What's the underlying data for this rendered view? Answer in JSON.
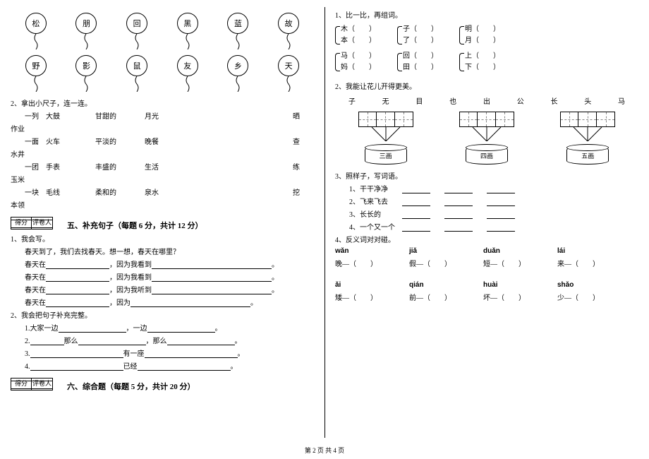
{
  "balloons_row1": [
    "松",
    "朋",
    "回",
    "黑",
    "蓝",
    "故"
  ],
  "balloons_row2": [
    "野",
    "影",
    "鼠",
    "友",
    "乡",
    "天"
  ],
  "q2_label": "2、拿出小尺子，连一连。",
  "pairs": [
    {
      "a": "一列",
      "b": "大鼓",
      "c": "甘甜的",
      "d": "月光",
      "e": "晒",
      "f": "作业"
    },
    {
      "a": "一面",
      "b": "火车",
      "c": "平淡的",
      "d": "晚餐",
      "e": "查",
      "f": "水井"
    },
    {
      "a": "一团",
      "b": "手表",
      "c": "丰盛的",
      "d": "生活",
      "e": "练",
      "f": "玉米"
    },
    {
      "a": "一块",
      "b": "毛线",
      "c": "柔和的",
      "d": "泉水",
      "e": "挖",
      "f": "本领"
    }
  ],
  "score_labels": {
    "score": "得分",
    "reviewer": "评卷人"
  },
  "section5": "五、补充句子（每题 6 分，共计 12 分）",
  "q5_1": "1、我会写。",
  "q5_1_prompt": "春天到了，我们去找春天。想一想，春天在哪里？",
  "q5_1_lines": [
    {
      "a": "春天在",
      "mid": "，因为我看到"
    },
    {
      "a": "春天在",
      "mid": "，因为我看到"
    },
    {
      "a": "春天在",
      "mid": "，因为我听到"
    },
    {
      "a": "春天在",
      "mid": "，因为"
    }
  ],
  "q5_2": "2、我会把句子补充完整。",
  "q5_2_lines": [
    "1.大家一边________________，一边________________。",
    "2.________那么________________，那么________________。",
    "3.______________________有一座______________________。",
    "4.______________________已经______________________。"
  ],
  "section6": "六、综合题（每题 5 分，共计 20 分）",
  "r_q1": "1、比一比，再组词。",
  "bracket_groups": [
    [
      [
        "木（　　）",
        "本（　　）"
      ],
      [
        "子（　　）",
        "了（　　）"
      ],
      [
        "明（　　）",
        "月（　　）"
      ]
    ],
    [
      [
        "马（　　）",
        "妈（　　）"
      ],
      [
        "回（　　）",
        "田（　　）"
      ],
      [
        "上（　　）",
        "下（　　）"
      ]
    ]
  ],
  "r_q2": "2、我能让花儿开得更美。",
  "chars": [
    "子",
    "无",
    "目",
    "也",
    "出",
    "公",
    "长",
    "头",
    "马"
  ],
  "cylinders": [
    "三画",
    "四画",
    "五画"
  ],
  "r_q3": "3、照样子，写词语。",
  "r_q3_items": [
    "1、干干净净　　________　　________　　________",
    "2、飞来飞去　　________　　________　　________",
    "3、长长的　　　________　　________　　________",
    "4、一个又一个　________　　________　　________"
  ],
  "r_q4": "4、反义词对对碰。",
  "antonyms_pinyin": [
    [
      "wǎn",
      "jiǎ",
      "duǎn",
      "lái"
    ],
    [
      "ǎi",
      "qián",
      "huài",
      "shǎo"
    ]
  ],
  "antonyms_chars": [
    [
      "晚—（　　）",
      "假—（　　）",
      "短—（　　）",
      "来—（　　）"
    ],
    [
      "矮—（　　）",
      "前—（　　）",
      "坏—（　　）",
      "少—（　　）"
    ]
  ],
  "footer": "第 2 页  共 4 页"
}
